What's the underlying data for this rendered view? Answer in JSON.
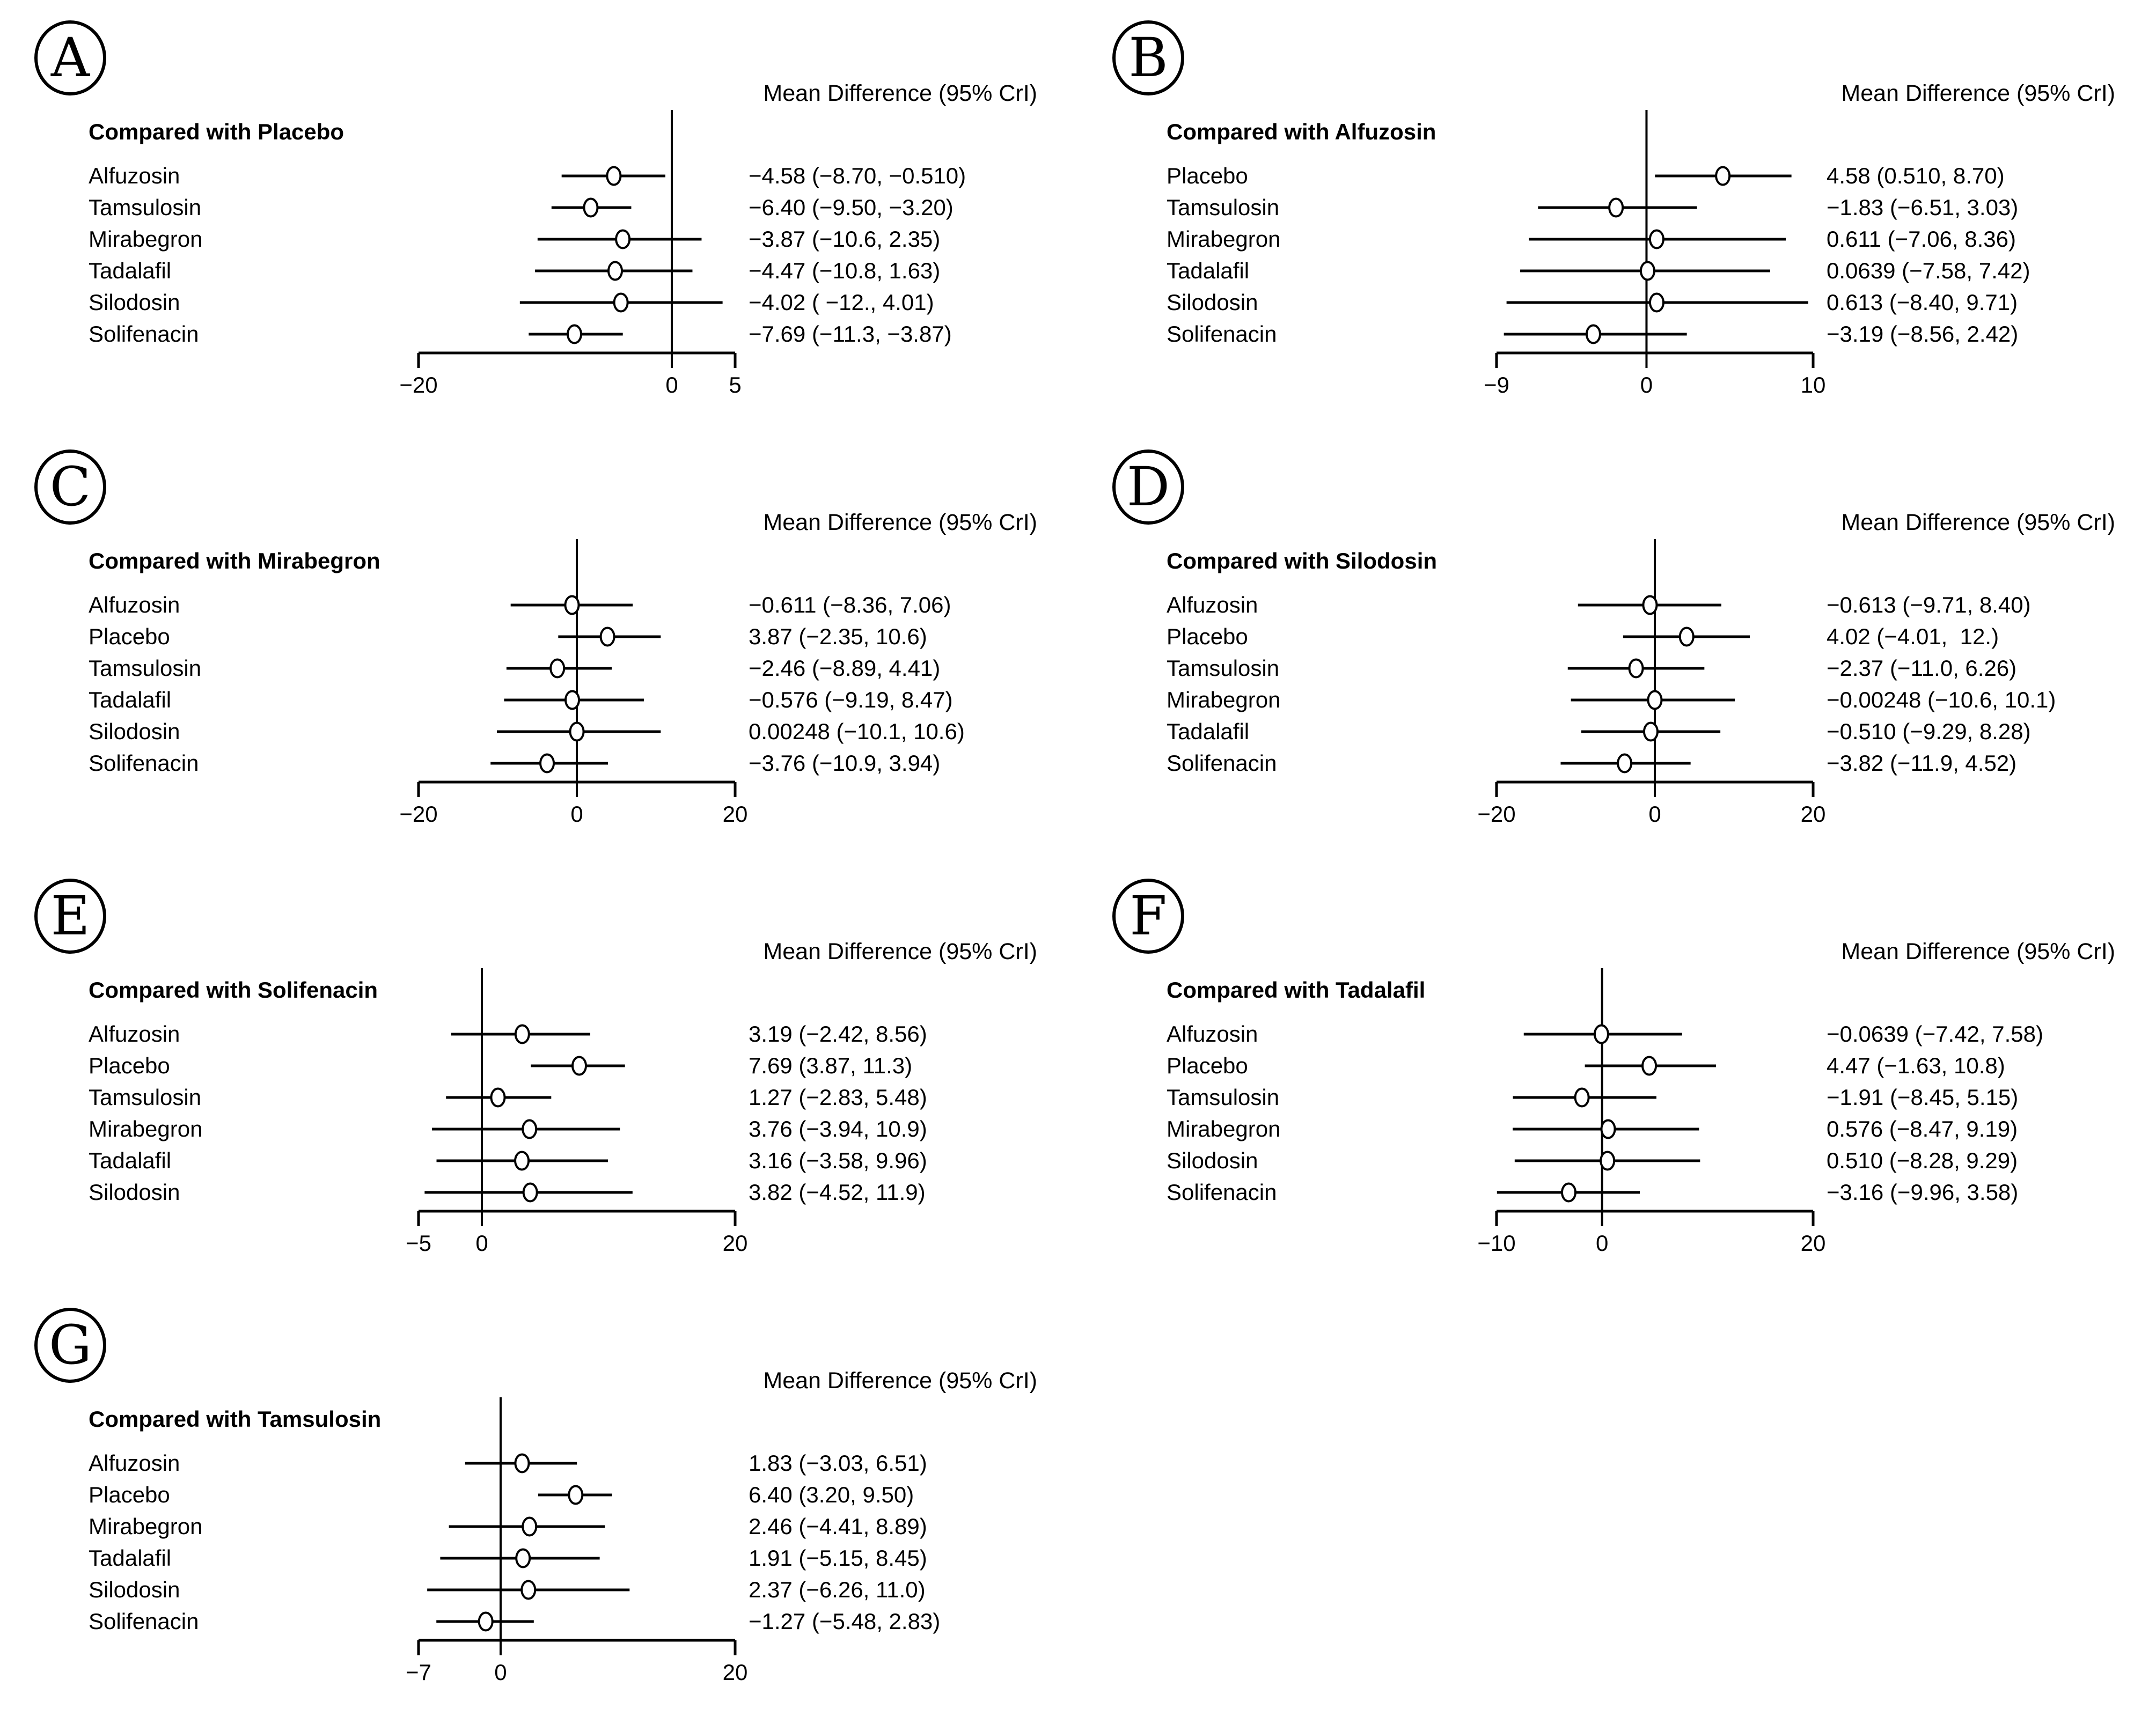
{
  "colors": {
    "ink": "#000000",
    "paper": "#ffffff"
  },
  "chart_data": {
    "type": "scatter",
    "subtype": "forest-plot-grid",
    "description": "Network meta-analysis forest plots of mean differences with 95% credible intervals, seven comparator panels",
    "header_label": "Mean Difference (95% CrI)",
    "panels": [
      {
        "letter": "A",
        "title": "Compared with Placebo",
        "header": "Mean Difference (95% CrI)",
        "axis": {
          "min": -20,
          "max": 5,
          "ticks": [
            -20,
            0,
            5
          ],
          "tick_labels": [
            "−20",
            "0",
            "5"
          ]
        },
        "rows": [
          {
            "label": "Alfuzosin",
            "mean": -4.58,
            "lower": -8.7,
            "upper": -0.51,
            "text": "−4.58 (−8.70, −0.510)"
          },
          {
            "label": "Tamsulosin",
            "mean": -6.4,
            "lower": -9.5,
            "upper": -3.2,
            "text": "−6.40 (−9.50, −3.20)"
          },
          {
            "label": "Mirabegron",
            "mean": -3.87,
            "lower": -10.6,
            "upper": 2.35,
            "text": "−3.87 (−10.6, 2.35)"
          },
          {
            "label": "Tadalafil",
            "mean": -4.47,
            "lower": -10.8,
            "upper": 1.63,
            "text": "−4.47 (−10.8, 1.63)"
          },
          {
            "label": "Silodosin",
            "mean": -4.02,
            "lower": -12.0,
            "upper": 4.01,
            "text": "−4.02 ( −12., 4.01)"
          },
          {
            "label": "Solifenacin",
            "mean": -7.69,
            "lower": -11.3,
            "upper": -3.87,
            "text": "−7.69 (−11.3, −3.87)"
          }
        ]
      },
      {
        "letter": "B",
        "title": "Compared with Alfuzosin",
        "header": "Mean Difference (95% CrI)",
        "axis": {
          "min": -9,
          "max": 10,
          "ticks": [
            -9,
            0,
            10
          ],
          "tick_labels": [
            "−9",
            "0",
            "10"
          ]
        },
        "rows": [
          {
            "label": "Placebo",
            "mean": 4.58,
            "lower": 0.51,
            "upper": 8.7,
            "text": "4.58 (0.510, 8.70)"
          },
          {
            "label": "Tamsulosin",
            "mean": -1.83,
            "lower": -6.51,
            "upper": 3.03,
            "text": "−1.83 (−6.51, 3.03)"
          },
          {
            "label": "Mirabegron",
            "mean": 0.611,
            "lower": -7.06,
            "upper": 8.36,
            "text": "0.611 (−7.06, 8.36)"
          },
          {
            "label": "Tadalafil",
            "mean": 0.0639,
            "lower": -7.58,
            "upper": 7.42,
            "text": "0.0639 (−7.58, 7.42)"
          },
          {
            "label": "Silodosin",
            "mean": 0.613,
            "lower": -8.4,
            "upper": 9.71,
            "text": "0.613 (−8.40, 9.71)"
          },
          {
            "label": "Solifenacin",
            "mean": -3.19,
            "lower": -8.56,
            "upper": 2.42,
            "text": "−3.19 (−8.56, 2.42)"
          }
        ]
      },
      {
        "letter": "C",
        "title": "Compared with Mirabegron",
        "header": "Mean Difference (95% CrI)",
        "axis": {
          "min": -20,
          "max": 20,
          "ticks": [
            -20,
            0,
            20
          ],
          "tick_labels": [
            "−20",
            "0",
            "20"
          ]
        },
        "rows": [
          {
            "label": "Alfuzosin",
            "mean": -0.611,
            "lower": -8.36,
            "upper": 7.06,
            "text": "−0.611 (−8.36, 7.06)"
          },
          {
            "label": "Placebo",
            "mean": 3.87,
            "lower": -2.35,
            "upper": 10.6,
            "text": "3.87 (−2.35, 10.6)"
          },
          {
            "label": "Tamsulosin",
            "mean": -2.46,
            "lower": -8.89,
            "upper": 4.41,
            "text": "−2.46 (−8.89, 4.41)"
          },
          {
            "label": "Tadalafil",
            "mean": -0.576,
            "lower": -9.19,
            "upper": 8.47,
            "text": "−0.576 (−9.19, 8.47)"
          },
          {
            "label": "Silodosin",
            "mean": 0.00248,
            "lower": -10.1,
            "upper": 10.6,
            "text": "0.00248 (−10.1, 10.6)"
          },
          {
            "label": "Solifenacin",
            "mean": -3.76,
            "lower": -10.9,
            "upper": 3.94,
            "text": "−3.76 (−10.9, 3.94)"
          }
        ]
      },
      {
        "letter": "D",
        "title": "Compared with Silodosin",
        "header": "Mean Difference (95% CrI)",
        "axis": {
          "min": -20,
          "max": 20,
          "ticks": [
            -20,
            0,
            20
          ],
          "tick_labels": [
            "−20",
            "0",
            "20"
          ]
        },
        "rows": [
          {
            "label": "Alfuzosin",
            "mean": -0.613,
            "lower": -9.71,
            "upper": 8.4,
            "text": "−0.613 (−9.71, 8.40)"
          },
          {
            "label": "Placebo",
            "mean": 4.02,
            "lower": -4.01,
            "upper": 12.0,
            "text": "4.02 (−4.01,  12.)"
          },
          {
            "label": "Tamsulosin",
            "mean": -2.37,
            "lower": -11.0,
            "upper": 6.26,
            "text": "−2.37 (−11.0, 6.26)"
          },
          {
            "label": "Mirabegron",
            "mean": -0.00248,
            "lower": -10.6,
            "upper": 10.1,
            "text": "−0.00248 (−10.6, 10.1)"
          },
          {
            "label": "Tadalafil",
            "mean": -0.51,
            "lower": -9.29,
            "upper": 8.28,
            "text": "−0.510 (−9.29, 8.28)"
          },
          {
            "label": "Solifenacin",
            "mean": -3.82,
            "lower": -11.9,
            "upper": 4.52,
            "text": "−3.82 (−11.9, 4.52)"
          }
        ]
      },
      {
        "letter": "E",
        "title": "Compared with Solifenacin",
        "header": "Mean Difference (95% CrI)",
        "axis": {
          "min": -5,
          "max": 20,
          "ticks": [
            -5,
            0,
            20
          ],
          "tick_labels": [
            "−5",
            "0",
            "20"
          ]
        },
        "rows": [
          {
            "label": "Alfuzosin",
            "mean": 3.19,
            "lower": -2.42,
            "upper": 8.56,
            "text": "3.19 (−2.42, 8.56)"
          },
          {
            "label": "Placebo",
            "mean": 7.69,
            "lower": 3.87,
            "upper": 11.3,
            "text": "7.69 (3.87, 11.3)"
          },
          {
            "label": "Tamsulosin",
            "mean": 1.27,
            "lower": -2.83,
            "upper": 5.48,
            "text": "1.27 (−2.83, 5.48)"
          },
          {
            "label": "Mirabegron",
            "mean": 3.76,
            "lower": -3.94,
            "upper": 10.9,
            "text": "3.76 (−3.94, 10.9)"
          },
          {
            "label": "Tadalafil",
            "mean": 3.16,
            "lower": -3.58,
            "upper": 9.96,
            "text": "3.16 (−3.58, 9.96)"
          },
          {
            "label": "Silodosin",
            "mean": 3.82,
            "lower": -4.52,
            "upper": 11.9,
            "text": "3.82 (−4.52, 11.9)"
          }
        ]
      },
      {
        "letter": "F",
        "title": "Compared with Tadalafil",
        "header": "Mean Difference (95% CrI)",
        "axis": {
          "min": -10,
          "max": 20,
          "ticks": [
            -10,
            0,
            20
          ],
          "tick_labels": [
            "−10",
            "0",
            "20"
          ]
        },
        "rows": [
          {
            "label": "Alfuzosin",
            "mean": -0.0639,
            "lower": -7.42,
            "upper": 7.58,
            "text": "−0.0639 (−7.42, 7.58)"
          },
          {
            "label": "Placebo",
            "mean": 4.47,
            "lower": -1.63,
            "upper": 10.8,
            "text": "4.47 (−1.63, 10.8)"
          },
          {
            "label": "Tamsulosin",
            "mean": -1.91,
            "lower": -8.45,
            "upper": 5.15,
            "text": "−1.91 (−8.45, 5.15)"
          },
          {
            "label": "Mirabegron",
            "mean": 0.576,
            "lower": -8.47,
            "upper": 9.19,
            "text": "0.576 (−8.47, 9.19)"
          },
          {
            "label": "Silodosin",
            "mean": 0.51,
            "lower": -8.28,
            "upper": 9.29,
            "text": "0.510 (−8.28, 9.29)"
          },
          {
            "label": "Solifenacin",
            "mean": -3.16,
            "lower": -9.96,
            "upper": 3.58,
            "text": "−3.16 (−9.96, 3.58)"
          }
        ]
      },
      {
        "letter": "G",
        "title": "Compared with Tamsulosin",
        "header": "Mean Difference (95% CrI)",
        "axis": {
          "min": -7,
          "max": 20,
          "ticks": [
            -7,
            0,
            20
          ],
          "tick_labels": [
            "−7",
            "0",
            "20"
          ]
        },
        "rows": [
          {
            "label": "Alfuzosin",
            "mean": 1.83,
            "lower": -3.03,
            "upper": 6.51,
            "text": "1.83 (−3.03, 6.51)"
          },
          {
            "label": "Placebo",
            "mean": 6.4,
            "lower": 3.2,
            "upper": 9.5,
            "text": "6.40 (3.20, 9.50)"
          },
          {
            "label": "Mirabegron",
            "mean": 2.46,
            "lower": -4.41,
            "upper": 8.89,
            "text": "2.46 (−4.41, 8.89)"
          },
          {
            "label": "Tadalafil",
            "mean": 1.91,
            "lower": -5.15,
            "upper": 8.45,
            "text": "1.91 (−5.15, 8.45)"
          },
          {
            "label": "Silodosin",
            "mean": 2.37,
            "lower": -6.26,
            "upper": 11.0,
            "text": "2.37 (−6.26, 11.0)"
          },
          {
            "label": "Solifenacin",
            "mean": -1.27,
            "lower": -5.48,
            "upper": 2.83,
            "text": "−1.27 (−5.48, 2.83)"
          }
        ]
      }
    ]
  }
}
